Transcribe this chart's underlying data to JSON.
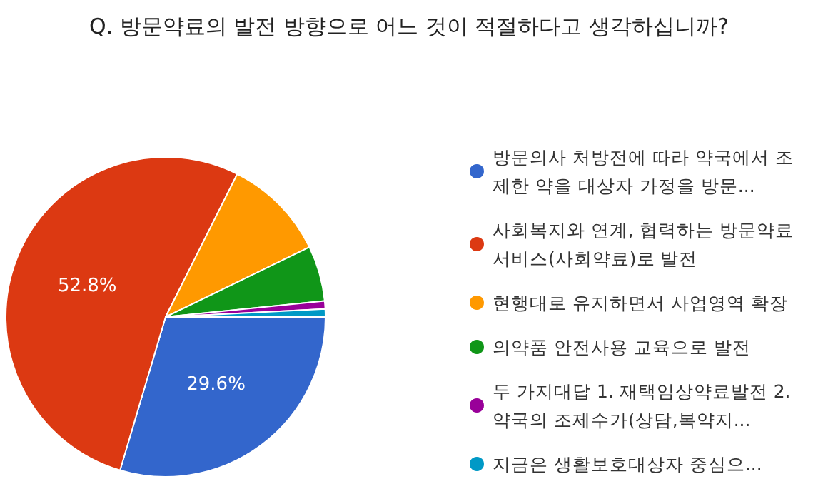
{
  "chart_data": {
    "type": "pie",
    "title": "Q. 방문약료의 발전 방향으로 어느 것이 적절하다고 생각하십니까?",
    "categories": [
      "방문의사 처방전에 따라 약국에서 조제한 약을 대상자 가정을 방문...",
      "사회복지와 연계, 협력하는 방문약료 서비스(사회약료)로 발전",
      "현행대로 유지하면서 사업영역 확장",
      "의약품 안전사용 교육으로 발전",
      "두 가지대답 1. 재택임상약료발전 2. 약국의 조제수가(상담,복약지...",
      "지금은 생활보호대상자 중심으..."
    ],
    "values": [
      29.6,
      52.8,
      10.4,
      5.6,
      0.8,
      0.8
    ],
    "value_labels": [
      "29.6%",
      "52.8%",
      null,
      null,
      null,
      null
    ],
    "colors": [
      "#3366cc",
      "#dc3912",
      "#ff9900",
      "#109618",
      "#990099",
      "#0099c6"
    ],
    "legend": "right"
  }
}
